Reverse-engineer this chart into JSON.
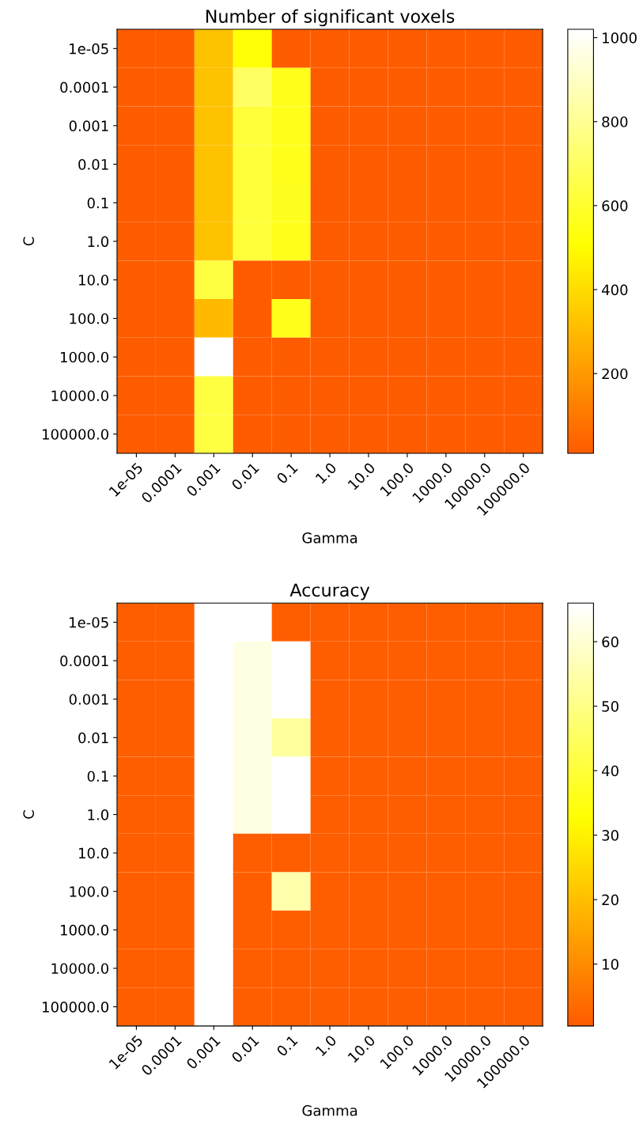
{
  "chart_data": [
    {
      "type": "heatmap",
      "title": "Number of significant voxels",
      "xlabel": "Gamma",
      "ylabel": "C",
      "categories": [
        "1e-05",
        "0.0001",
        "0.001",
        "0.01",
        "0.1",
        "1.0",
        "10.0",
        "100.0",
        "1000.0",
        "10000.0",
        "100000.0"
      ],
      "y_categories": [
        "1e-05",
        "0.0001",
        "0.001",
        "0.01",
        "0.1",
        "1.0",
        "10.0",
        "100.0",
        "1000.0",
        "10000.0",
        "100000.0"
      ],
      "cells": [
        [
          10,
          10,
          320,
          520,
          10,
          10,
          10,
          10,
          10,
          10,
          10
        ],
        [
          10,
          10,
          320,
          700,
          560,
          10,
          10,
          10,
          10,
          10,
          10
        ],
        [
          10,
          10,
          320,
          620,
          560,
          10,
          10,
          10,
          10,
          10,
          10
        ],
        [
          10,
          10,
          320,
          620,
          560,
          10,
          10,
          10,
          10,
          10,
          10
        ],
        [
          10,
          10,
          320,
          620,
          570,
          10,
          10,
          10,
          10,
          10,
          10
        ],
        [
          10,
          10,
          320,
          620,
          560,
          10,
          10,
          10,
          10,
          10,
          10
        ],
        [
          10,
          10,
          640,
          10,
          10,
          10,
          10,
          10,
          10,
          10,
          10
        ],
        [
          10,
          10,
          300,
          10,
          560,
          10,
          10,
          10,
          10,
          10,
          10
        ],
        [
          10,
          10,
          1020,
          10,
          10,
          10,
          10,
          10,
          10,
          10,
          10
        ],
        [
          10,
          10,
          640,
          10,
          10,
          10,
          10,
          10,
          10,
          10,
          10
        ],
        [
          10,
          10,
          640,
          10,
          10,
          10,
          10,
          10,
          10,
          10,
          10
        ]
      ],
      "clim": [
        10,
        1020
      ],
      "cticks": [
        200,
        400,
        600,
        800,
        1000
      ]
    },
    {
      "type": "heatmap",
      "title": "Accuracy",
      "xlabel": "Gamma",
      "ylabel": "C",
      "categories": [
        "1e-05",
        "0.0001",
        "0.001",
        "0.01",
        "0.1",
        "1.0",
        "10.0",
        "100.0",
        "1000.0",
        "10000.0",
        "100000.0"
      ],
      "y_categories": [
        "1e-05",
        "0.0001",
        "0.001",
        "0.01",
        "0.1",
        "1.0",
        "10.0",
        "100.0",
        "1000.0",
        "10000.0",
        "100000.0"
      ],
      "cells": [
        [
          1,
          1,
          66,
          66,
          1,
          1,
          1,
          1,
          1,
          1,
          1
        ],
        [
          1,
          1,
          66,
          62,
          66,
          1,
          1,
          1,
          1,
          1,
          1
        ],
        [
          1,
          1,
          66,
          62,
          66,
          1,
          1,
          1,
          1,
          1,
          1
        ],
        [
          1,
          1,
          66,
          62,
          53,
          1,
          1,
          1,
          1,
          1,
          1
        ],
        [
          1,
          1,
          66,
          62,
          66,
          1,
          1,
          1,
          1,
          1,
          1
        ],
        [
          1,
          1,
          66,
          62,
          66,
          1,
          1,
          1,
          1,
          1,
          1
        ],
        [
          1,
          1,
          66,
          1,
          1,
          1,
          1,
          1,
          1,
          1,
          1
        ],
        [
          1,
          1,
          66,
          1,
          55,
          1,
          1,
          1,
          1,
          1,
          1
        ],
        [
          1,
          1,
          66,
          1,
          1,
          1,
          1,
          1,
          1,
          1,
          1
        ],
        [
          1,
          1,
          66,
          1,
          1,
          1,
          1,
          1,
          1,
          1,
          1
        ],
        [
          1,
          1,
          66,
          1,
          1,
          1,
          1,
          1,
          1,
          1,
          1
        ]
      ],
      "clim": [
        0.4,
        66
      ],
      "cticks": [
        10,
        20,
        30,
        40,
        50,
        60
      ]
    }
  ]
}
